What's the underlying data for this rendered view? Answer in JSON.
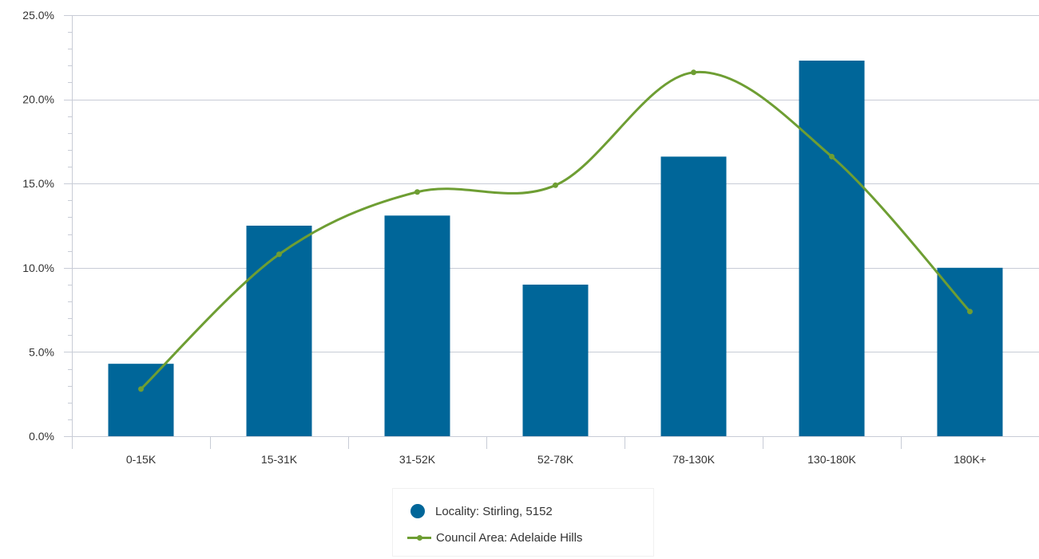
{
  "colors": {
    "bar": "#006699",
    "line": "#6e9e33",
    "grid": "#c8ccd6",
    "axis": "#c8ccd6"
  },
  "chart_data": {
    "type": "bar",
    "categories": [
      "0-15K",
      "15-31K",
      "31-52K",
      "52-78K",
      "78-130K",
      "130-180K",
      "180K+"
    ],
    "series": [
      {
        "name": "Locality: Stirling, 5152",
        "type": "bar",
        "values": [
          4.3,
          12.5,
          13.1,
          9.0,
          16.6,
          22.3,
          10.0
        ]
      },
      {
        "name": "Council Area: Adelaide Hills",
        "type": "line",
        "values": [
          2.8,
          10.8,
          14.5,
          14.9,
          21.6,
          16.6,
          7.4
        ]
      }
    ],
    "ylim": [
      0,
      25
    ],
    "yticks": [
      "0.0%",
      "5.0%",
      "10.0%",
      "15.0%",
      "20.0%",
      "25.0%"
    ],
    "ytick_values": [
      0,
      5,
      10,
      15,
      20,
      25
    ],
    "grid": true,
    "legend_position": "bottom-center"
  }
}
